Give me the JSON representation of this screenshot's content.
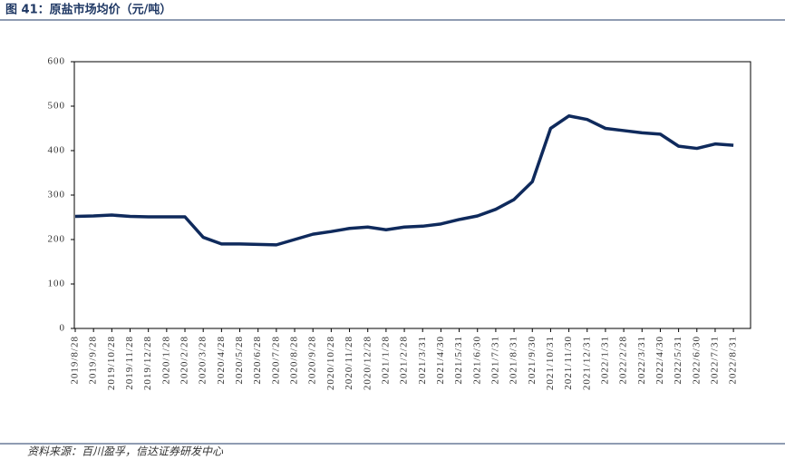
{
  "header": {
    "title": "图 41：原盐市场均价（元/吨）"
  },
  "chart_data": {
    "type": "line",
    "categories": [
      "2019/8/28",
      "2019/9/28",
      "2019/10/28",
      "2019/11/28",
      "2019/12/28",
      "2020/1/28",
      "2020/2/28",
      "2020/3/28",
      "2020/4/28",
      "2020/5/28",
      "2020/6/28",
      "2020/7/28",
      "2020/8/28",
      "2020/9/28",
      "2020/10/28",
      "2020/11/28",
      "2020/12/28",
      "2021/1/28",
      "2021/2/28",
      "2021/3/31",
      "2021/4/30",
      "2021/5/31",
      "2021/6/30",
      "2021/7/31",
      "2021/8/31",
      "2021/9/30",
      "2021/10/31",
      "2021/11/30",
      "2021/12/31",
      "2022/1/31",
      "2022/2/28",
      "2022/3/31",
      "2022/4/30",
      "2022/5/31",
      "2022/6/30",
      "2022/7/31",
      "2022/8/31"
    ],
    "values": [
      252,
      253,
      255,
      252,
      251,
      251,
      251,
      205,
      190,
      190,
      189,
      188,
      200,
      212,
      218,
      225,
      228,
      222,
      228,
      230,
      235,
      245,
      253,
      268,
      290,
      330,
      450,
      478,
      470,
      450,
      445,
      440,
      437,
      410,
      405,
      415,
      412
    ],
    "color": "#0f2a5c",
    "ylim": [
      0,
      600
    ],
    "yticks": [
      0,
      100,
      200,
      300,
      400,
      500,
      600
    ]
  },
  "footer": {
    "source": "资料来源：百川盈孚，信达证券研发中心"
  }
}
